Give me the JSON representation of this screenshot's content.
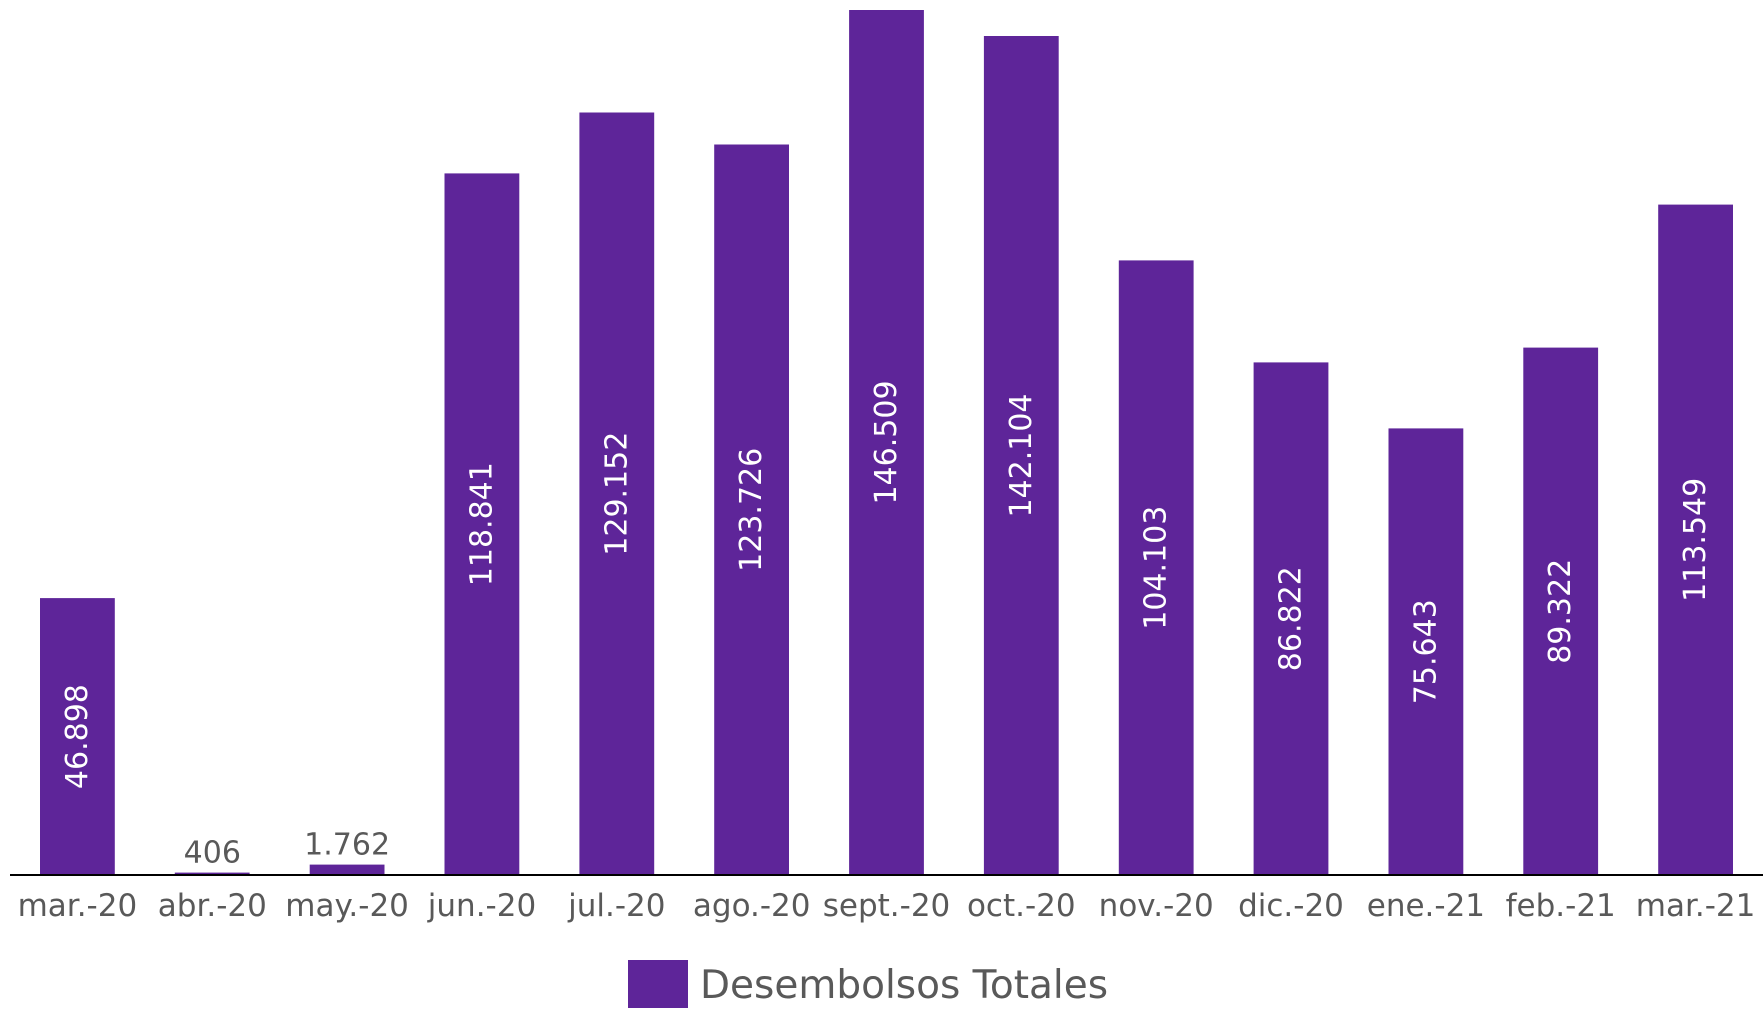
{
  "chart_data": {
    "type": "bar",
    "categories": [
      "mar.-20",
      "abr.-20",
      "may.-20",
      "jun.-20",
      "jul.-20",
      "ago.-20",
      "sept.-20",
      "oct.-20",
      "nov.-20",
      "dic.-20",
      "ene.-21",
      "feb.-21",
      "mar.-21"
    ],
    "series": [
      {
        "name": "Desembolsos Totales",
        "values": [
          46898,
          406,
          1762,
          118841,
          129152,
          123726,
          146509,
          142104,
          104103,
          86822,
          75643,
          89322,
          113549
        ],
        "labels": [
          "46.898",
          "406",
          "1.762",
          "118.841",
          "129.152",
          "123.726",
          "146.509",
          "142.104",
          "104.103",
          "86.822",
          "75.643",
          "89.322",
          "113.549"
        ]
      }
    ],
    "ylim": [
      0,
      146509
    ],
    "y_axis_visible": false,
    "grid": false,
    "legend_position": "bottom-center",
    "data_label_orientation": "vertical-inside-bar"
  },
  "colors": {
    "bar": "#5e2599",
    "axis": "#000000",
    "label_inside": "#ffffff",
    "label_outside": "#595959",
    "tick_text": "#595959"
  }
}
